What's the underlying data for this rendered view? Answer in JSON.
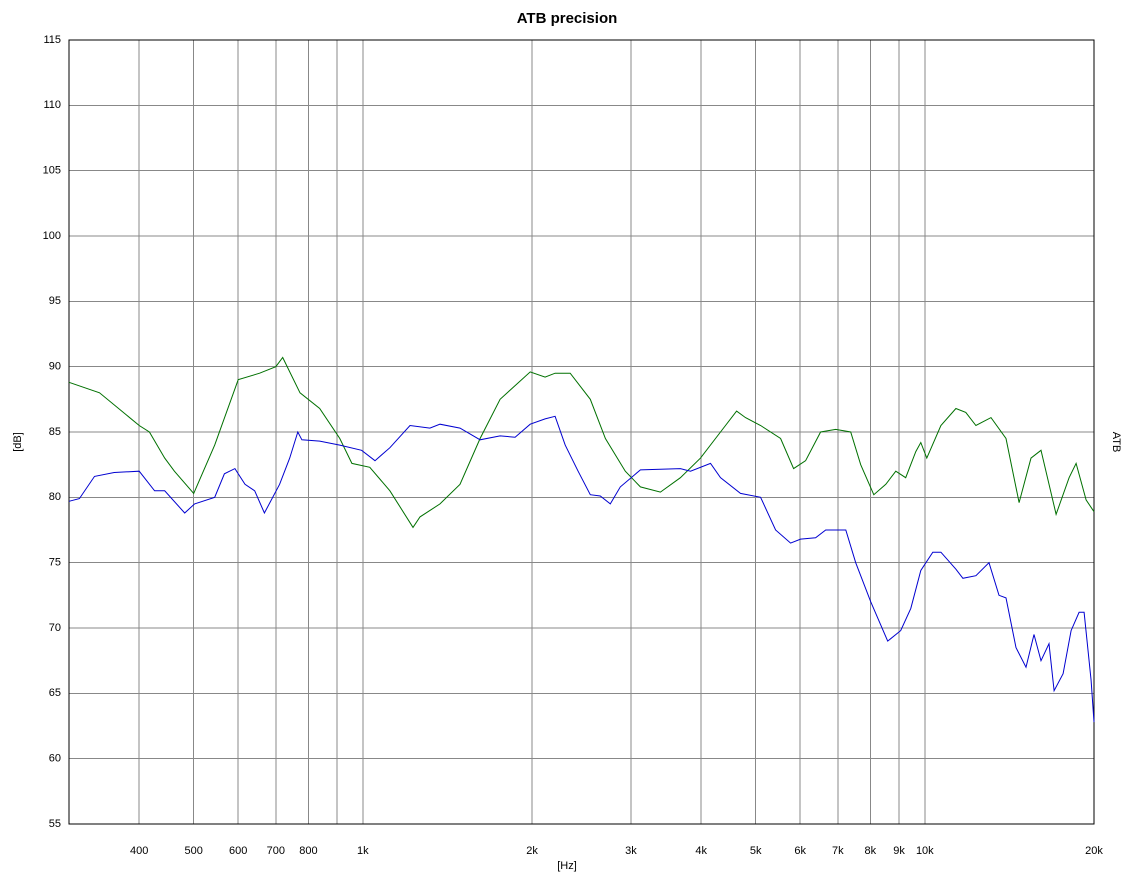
{
  "chart_data": {
    "type": "line",
    "title": "ATB precision",
    "x_label": "[Hz]",
    "y_label": "[dB]",
    "y2_label": "ATB",
    "log_x": true,
    "grid": true,
    "xlim": [
      300,
      20000
    ],
    "ylim": [
      55,
      115
    ],
    "xticks": [
      400,
      500,
      600,
      700,
      800,
      {
        "value": 1000,
        "label": "1k"
      },
      {
        "value": 2000,
        "label": "2k"
      },
      {
        "value": 3000,
        "label": "3k"
      },
      {
        "value": 4000,
        "label": "4k"
      },
      {
        "value": 5000,
        "label": "5k"
      },
      {
        "value": 6000,
        "label": "6k"
      },
      {
        "value": 7000,
        "label": "7k"
      },
      {
        "value": 8000,
        "label": "8k"
      },
      {
        "value": 9000,
        "label": "9k"
      },
      {
        "value": 10000,
        "label": "10k"
      },
      {
        "value": 20000,
        "label": "20k"
      }
    ],
    "x_minor_grid": [
      900
    ],
    "yticks": [
      55,
      60,
      65,
      70,
      75,
      80,
      85,
      90,
      95,
      100,
      105,
      110,
      115
    ],
    "series": [
      {
        "color": "#007000",
        "x": [
          300,
          340,
          400,
          417,
          444,
          462,
          500,
          545,
          600,
          655,
          700,
          720,
          773,
          838,
          910,
          956,
          1029,
          1117,
          1228,
          1264,
          1372,
          1489,
          1617,
          1755,
          1985,
          2110,
          2198,
          2339,
          2539,
          2701,
          2931,
          3118,
          3384,
          3673,
          3988,
          4329,
          4624,
          4797,
          5103,
          5538,
          5841,
          6136,
          6525,
          6941,
          7382,
          7690,
          8113,
          8521,
          8878,
          9247,
          9638,
          9837,
          10083,
          10680,
          11356,
          11830,
          12327,
          13113,
          13947,
          14712,
          15451,
          16096,
          17121,
          18061,
          18585,
          19364,
          20000
        ],
        "values": [
          88.8,
          88.0,
          85.5,
          85.0,
          83.0,
          82.0,
          80.3,
          84.0,
          89.0,
          89.5,
          90.0,
          90.7,
          88.0,
          86.8,
          84.5,
          82.6,
          82.3,
          80.5,
          77.7,
          78.5,
          79.5,
          81.0,
          84.5,
          87.5,
          89.6,
          89.2,
          89.5,
          89.5,
          87.5,
          84.5,
          82.0,
          80.8,
          80.4,
          81.5,
          83.0,
          85.0,
          86.6,
          86.1,
          85.5,
          84.5,
          82.2,
          82.8,
          85.0,
          85.2,
          85.0,
          82.5,
          80.2,
          81.0,
          82.0,
          81.5,
          83.5,
          84.2,
          83.0,
          85.5,
          86.8,
          86.5,
          85.5,
          86.1,
          84.5,
          79.6,
          83.0,
          83.6,
          78.7,
          81.5,
          82.6,
          79.8,
          78.9
        ]
      },
      {
        "color": "#0000d0",
        "x": [
          300,
          313,
          333,
          361,
          400,
          426,
          444,
          482,
          502,
          545,
          567,
          592,
          617,
          642,
          668,
          711,
          741,
          766,
          779,
          838,
          910,
          995,
          1051,
          1117,
          1213,
          1316,
          1372,
          1489,
          1617,
          1755,
          1866,
          1985,
          2110,
          2198,
          2291,
          2416,
          2539,
          2646,
          2756,
          2872,
          3118,
          3673,
          3828,
          4156,
          4329,
          4699,
          5103,
          5425,
          5769,
          6011,
          6393,
          6661,
          7233,
          7534,
          8013,
          8590,
          9057,
          9441,
          9837,
          10334,
          10680,
          11356,
          11688,
          12327,
          13007,
          13551,
          13947,
          14531,
          15138,
          15642,
          16096,
          16634,
          16982,
          17620,
          18207,
          18813,
          19202,
          19765,
          20000
        ],
        "values": [
          79.7,
          79.9,
          81.6,
          81.9,
          82.0,
          80.5,
          80.5,
          78.8,
          79.5,
          80.0,
          81.8,
          82.2,
          81.0,
          80.5,
          78.8,
          81.0,
          83.0,
          85.0,
          84.4,
          84.3,
          84.0,
          83.6,
          82.8,
          83.8,
          85.5,
          85.3,
          85.6,
          85.3,
          84.4,
          84.7,
          84.6,
          85.6,
          86.0,
          86.2,
          84.0,
          82.0,
          80.2,
          80.1,
          79.5,
          80.8,
          82.1,
          82.2,
          82.0,
          82.6,
          81.5,
          80.3,
          80.0,
          77.5,
          76.5,
          76.8,
          76.9,
          77.5,
          77.5,
          75.0,
          72.0,
          69.0,
          69.8,
          71.5,
          74.4,
          75.8,
          75.8,
          74.5,
          73.8,
          74.0,
          75.0,
          72.5,
          72.3,
          68.5,
          67.0,
          69.5,
          67.5,
          68.8,
          65.2,
          66.5,
          69.8,
          71.2,
          71.2,
          66.0,
          62.8
        ]
      }
    ]
  }
}
